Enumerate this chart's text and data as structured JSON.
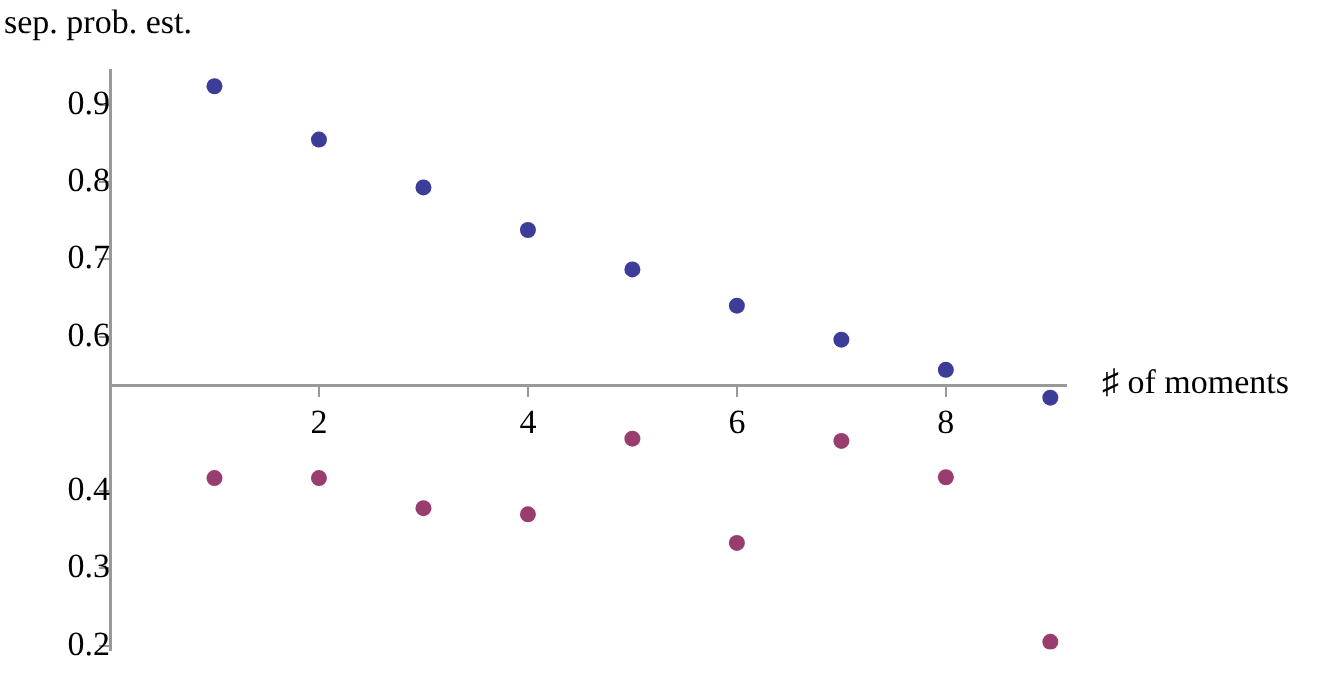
{
  "chart_data": {
    "type": "scatter",
    "ylabel": "sep. prob. est.",
    "xlabel": "♯ of moments",
    "x": [
      1,
      2,
      3,
      4,
      5,
      6,
      7,
      8,
      9
    ],
    "series": [
      {
        "color": "#3d3d99",
        "values": [
          0.924,
          0.855,
          0.793,
          0.738,
          0.687,
          0.64,
          0.596,
          0.557,
          0.521
        ]
      },
      {
        "color": "#993d6e",
        "values": [
          0.417,
          0.417,
          0.378,
          0.37,
          0.468,
          0.333,
          0.465,
          0.418,
          0.205
        ]
      }
    ],
    "xlim": [
      0,
      9.15
    ],
    "ylim": [
      0.195,
      0.945
    ],
    "xticks": [
      2,
      4,
      6,
      8
    ],
    "yticks": [
      0.2,
      0.3,
      0.4,
      0.6,
      0.7,
      0.8,
      0.9
    ],
    "grid": false,
    "legend": false,
    "marker": "circle"
  }
}
